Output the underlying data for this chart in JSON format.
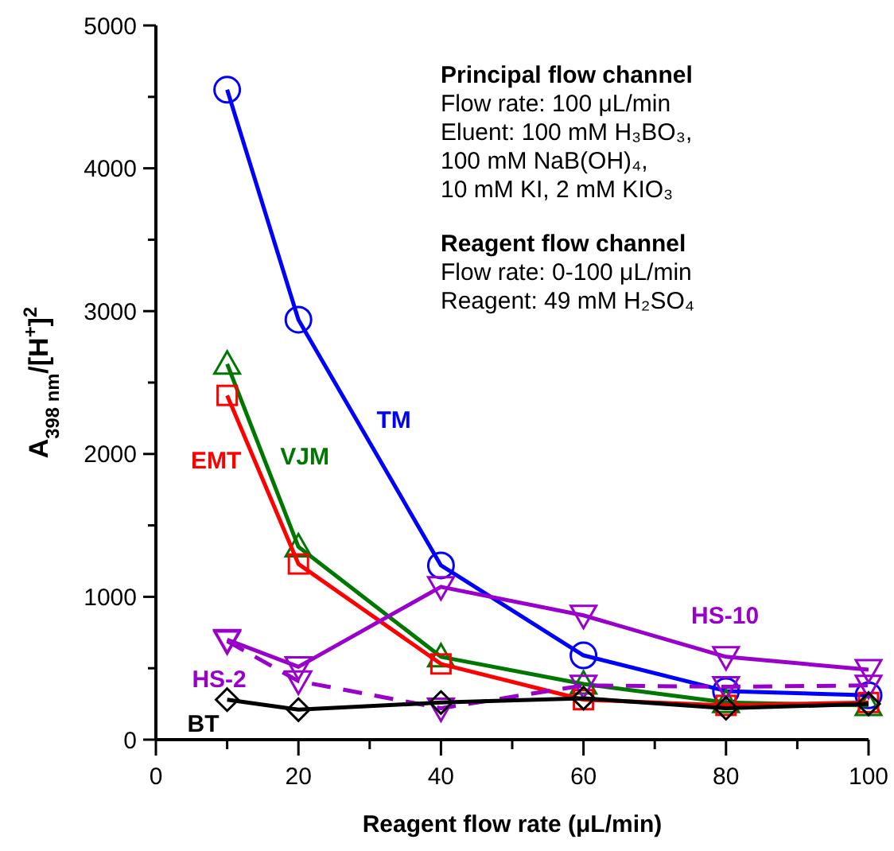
{
  "chart_data": {
    "type": "line",
    "xlabel": "Reagent flow rate (μL/min)",
    "ylabel": "A$_{398 nm}$/[H$^{+}$]$^{2}$",
    "x": [
      10,
      20,
      40,
      60,
      80,
      100
    ],
    "series": [
      {
        "name": "TM",
        "color": "#0000ff",
        "marker": "circle",
        "line_style": "solid",
        "values": [
          4550,
          2940,
          1220,
          590,
          340,
          310
        ]
      },
      {
        "name": "VJM",
        "color": "#007700",
        "marker": "triangle",
        "line_style": "solid",
        "values": [
          2630,
          1350,
          580,
          390,
          260,
          240
        ]
      },
      {
        "name": "EMT",
        "color": "#ff0000",
        "marker": "square",
        "line_style": "solid",
        "values": [
          2410,
          1230,
          530,
          280,
          240,
          260
        ]
      },
      {
        "name": "HS-10",
        "color": "#9900cc",
        "marker": "triangle-down",
        "line_style": "solid",
        "values": [
          700,
          510,
          1070,
          870,
          580,
          490
        ]
      },
      {
        "name": "HS-2",
        "color": "#9900cc",
        "marker": "triangle-down",
        "line_style": "dashed",
        "values": [
          690,
          410,
          220,
          380,
          370,
          380
        ]
      },
      {
        "name": "BT",
        "color": "#000000",
        "marker": "diamond",
        "line_style": "solid",
        "values": [
          280,
          210,
          260,
          290,
          220,
          250
        ]
      }
    ],
    "xlim": [
      0,
      100
    ],
    "xticks": [
      0,
      {
        "value": 10,
        "label": null
      },
      20,
      {
        "value": 30,
        "label": null
      },
      40,
      {
        "value": 50,
        "label": null
      },
      60,
      {
        "value": 70,
        "label": null
      },
      80,
      {
        "value": 90,
        "label": null
      },
      100
    ],
    "ylim": [
      0,
      5000
    ],
    "yticks": [
      0,
      {
        "value": 500,
        "label": null
      },
      1000,
      {
        "value": 1500,
        "label": null
      },
      2000,
      {
        "value": 2500,
        "label": null
      },
      3000,
      {
        "value": 3500,
        "label": null
      },
      4000,
      {
        "value": 4500,
        "label": null
      },
      5000
    ],
    "grid": false,
    "annotations": [
      "Principal flow channel",
      "Flow rate: 100 μL/min",
      "Eluent: 100 mM H₃BO₃,",
      "100 mM NaB(OH)₄,",
      "10 mM KI, 2 mM KIO₃",
      "Reagent flow channel",
      "Flow rate: 0-100 μL/min",
      "Reagent: 49 mM H₂SO₄"
    ]
  }
}
